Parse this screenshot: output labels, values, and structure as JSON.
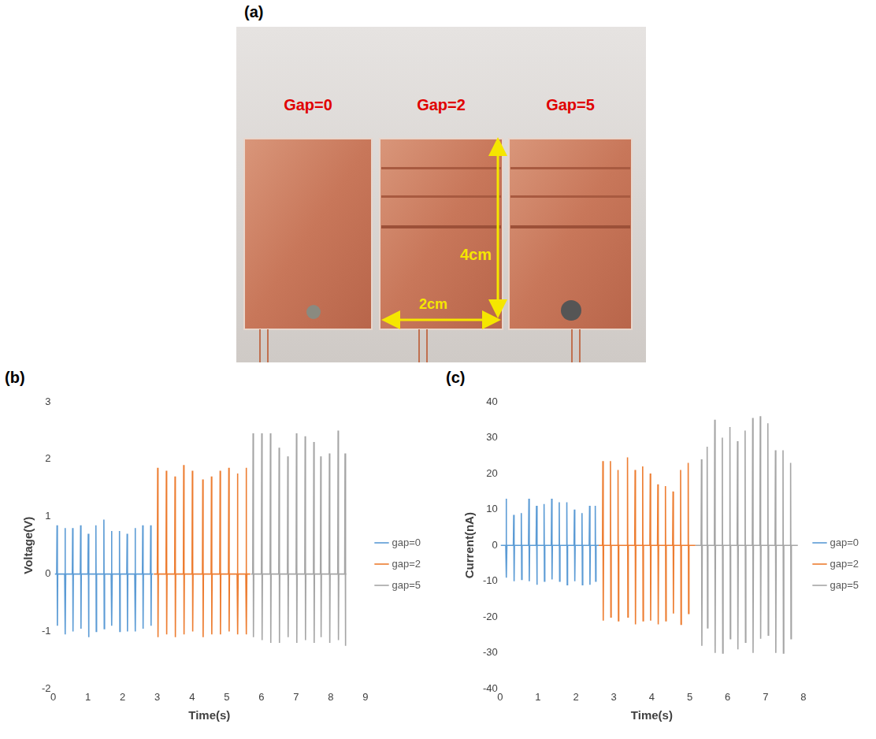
{
  "figure": {
    "panel_letters": [
      "(a)",
      "(b)",
      "(c)"
    ]
  },
  "photo": {
    "labels": [
      "Gap=0",
      "Gap=2",
      "Gap=5"
    ],
    "height_label": "4cm",
    "width_label": "2cm"
  },
  "chart_data": [
    {
      "type": "line",
      "x_label": "Time(s)",
      "y_label": "Voltage(V)",
      "xlim": [
        0,
        9
      ],
      "xticks": [
        0,
        1,
        2,
        3,
        4,
        5,
        6,
        7,
        8,
        9
      ],
      "ylim": [
        -2,
        3
      ],
      "yticks": [
        -2,
        -1,
        0,
        1,
        2,
        3
      ],
      "grid": false,
      "legend": "right",
      "series": [
        {
          "name": "gap=0",
          "color": "#5b9bd5",
          "x": [
            0.05,
            0.1,
            0.11,
            0.12,
            0.13,
            0.33,
            0.34,
            0.35,
            0.36,
            0.55,
            0.56,
            0.57,
            0.58,
            0.78,
            0.79,
            0.8,
            0.81,
            1.0,
            1.01,
            1.02,
            1.03,
            1.22,
            1.23,
            1.24,
            1.25,
            1.45,
            1.46,
            1.47,
            1.48,
            1.67,
            1.68,
            1.69,
            1.7,
            1.9,
            1.91,
            1.92,
            1.93,
            2.12,
            2.13,
            2.14,
            2.15,
            2.35,
            2.36,
            2.37,
            2.38,
            2.57,
            2.58,
            2.59,
            2.6,
            2.8,
            2.81,
            2.82,
            2.83,
            2.88
          ],
          "values": [
            0,
            0,
            0.85,
            -0.9,
            0,
            0,
            0.8,
            -1.05,
            0,
            0,
            0.8,
            -1.0,
            0,
            0,
            0.85,
            -0.95,
            0,
            0,
            0.7,
            -1.1,
            0,
            0,
            0.85,
            -1.0,
            0,
            0,
            0.95,
            -0.95,
            0,
            0,
            0.75,
            -0.9,
            0,
            0,
            0.75,
            -1.0,
            0,
            0,
            0.7,
            -1.0,
            0,
            0,
            0.8,
            -1.0,
            0,
            0,
            0.85,
            -0.95,
            0,
            0,
            0.85,
            -0.9,
            0,
            0
          ]
        },
        {
          "name": "gap=2",
          "color": "#ed7d31",
          "x": [
            2.9,
            3.0,
            3.01,
            3.02,
            3.03,
            3.25,
            3.26,
            3.27,
            3.28,
            3.5,
            3.51,
            3.52,
            3.53,
            3.75,
            3.76,
            3.77,
            3.78,
            4.0,
            4.01,
            4.02,
            4.03,
            4.3,
            4.31,
            4.32,
            4.33,
            4.55,
            4.56,
            4.57,
            4.58,
            4.8,
            4.81,
            4.82,
            4.83,
            5.05,
            5.06,
            5.07,
            5.08,
            5.3,
            5.31,
            5.32,
            5.33,
            5.55,
            5.56,
            5.57,
            5.58,
            5.68
          ],
          "values": [
            0,
            0,
            1.85,
            -1.1,
            0,
            0,
            1.8,
            -1.05,
            0,
            0,
            1.7,
            -1.1,
            0,
            0,
            1.9,
            -1.05,
            0,
            0,
            1.8,
            -1.0,
            0,
            0,
            1.65,
            -1.1,
            0,
            0,
            1.7,
            -1.05,
            0,
            0,
            1.8,
            -1.05,
            0,
            0,
            1.85,
            -1.0,
            0,
            0,
            1.75,
            -1.05,
            0,
            0,
            1.85,
            -1.05,
            0,
            0
          ]
        },
        {
          "name": "gap=5",
          "color": "#a5a5a5",
          "x": [
            5.7,
            5.75,
            5.76,
            5.77,
            5.78,
            6.0,
            6.01,
            6.02,
            6.03,
            6.25,
            6.26,
            6.27,
            6.28,
            6.5,
            6.51,
            6.52,
            6.53,
            6.75,
            6.76,
            6.77,
            6.78,
            7.0,
            7.01,
            7.02,
            7.03,
            7.25,
            7.26,
            7.27,
            7.28,
            7.5,
            7.51,
            7.52,
            7.53,
            7.7,
            7.71,
            7.72,
            7.73,
            7.95,
            7.96,
            7.97,
            7.98,
            8.2,
            8.21,
            8.22,
            8.23,
            8.4,
            8.41,
            8.42,
            8.43,
            8.45
          ],
          "values": [
            0,
            0,
            2.45,
            -1.1,
            0,
            0,
            2.45,
            -1.15,
            0,
            0,
            2.45,
            -1.2,
            0,
            0,
            2.2,
            -1.2,
            0,
            0,
            2.05,
            -1.1,
            0,
            0,
            2.45,
            -1.2,
            0,
            0,
            2.4,
            -1.15,
            0,
            0,
            2.3,
            -1.2,
            0,
            0,
            2.05,
            -1.1,
            0,
            0,
            2.1,
            -1.2,
            0,
            0,
            2.5,
            -1.15,
            0,
            0,
            2.1,
            -1.25,
            0,
            0
          ]
        }
      ]
    },
    {
      "type": "line",
      "x_label": "Time(s)",
      "y_label": "Current(nA)",
      "xlim": [
        0,
        8
      ],
      "xticks": [
        0,
        1,
        2,
        3,
        4,
        5,
        6,
        7,
        8
      ],
      "ylim": [
        -40,
        40
      ],
      "yticks": [
        -40,
        -30,
        -20,
        -10,
        0,
        10,
        20,
        30,
        40
      ],
      "grid": false,
      "legend": "right",
      "series": [
        {
          "name": "gap=0",
          "color": "#5b9bd5",
          "x": [
            0.02,
            0.15,
            0.16,
            0.17,
            0.18,
            0.35,
            0.36,
            0.37,
            0.38,
            0.55,
            0.56,
            0.57,
            0.58,
            0.75,
            0.76,
            0.77,
            0.78,
            0.95,
            0.96,
            0.97,
            0.98,
            1.15,
            1.16,
            1.17,
            1.18,
            1.35,
            1.36,
            1.37,
            1.38,
            1.55,
            1.56,
            1.57,
            1.58,
            1.75,
            1.76,
            1.77,
            1.78,
            1.95,
            1.96,
            1.97,
            1.98,
            2.15,
            2.16,
            2.17,
            2.18,
            2.35,
            2.36,
            2.37,
            2.38,
            2.5,
            2.51,
            2.52,
            2.53,
            2.6
          ],
          "values": [
            0,
            0,
            13,
            -9,
            0,
            0,
            8.5,
            -10,
            0,
            0,
            9,
            -9.5,
            0,
            0,
            13,
            -10,
            0,
            0,
            11,
            -11,
            0,
            0,
            11.5,
            -10,
            0,
            0,
            13,
            -9.5,
            0,
            0,
            12,
            -10,
            0,
            0,
            12,
            -11,
            0,
            0,
            10,
            -10,
            0,
            0,
            9,
            -11,
            0,
            0,
            11,
            -11,
            0,
            0,
            11,
            -10,
            0,
            0
          ]
        },
        {
          "name": "gap=2",
          "color": "#ed7d31",
          "x": [
            2.6,
            2.7,
            2.71,
            2.72,
            2.73,
            2.9,
            2.91,
            2.92,
            2.93,
            3.1,
            3.11,
            3.12,
            3.13,
            3.35,
            3.36,
            3.37,
            3.38,
            3.55,
            3.56,
            3.57,
            3.58,
            3.75,
            3.76,
            3.77,
            3.78,
            3.95,
            3.96,
            3.97,
            3.98,
            4.15,
            4.16,
            4.17,
            4.18,
            4.35,
            4.36,
            4.37,
            4.38,
            4.55,
            4.56,
            4.57,
            4.58,
            4.75,
            4.76,
            4.77,
            4.78,
            4.95,
            4.96,
            4.97,
            4.98,
            5.15
          ],
          "values": [
            0,
            0,
            23.5,
            -21,
            0,
            0,
            23.5,
            -20,
            0,
            0,
            21,
            -21,
            0,
            0,
            24.5,
            -20,
            0,
            0,
            21,
            -22,
            0,
            0,
            22,
            -21,
            0,
            0,
            20,
            -21,
            0,
            0,
            17,
            -22,
            0,
            0,
            16.5,
            -21,
            0,
            0,
            15,
            -19,
            0,
            0,
            21,
            -22,
            0,
            0,
            23,
            -19,
            0,
            0
          ]
        },
        {
          "name": "gap=5",
          "color": "#a5a5a5",
          "x": [
            5.15,
            5.3,
            5.31,
            5.32,
            5.33,
            5.45,
            5.46,
            5.47,
            5.48,
            5.65,
            5.66,
            5.67,
            5.68,
            5.85,
            5.86,
            5.87,
            5.88,
            6.05,
            6.06,
            6.07,
            6.08,
            6.25,
            6.26,
            6.27,
            6.28,
            6.45,
            6.46,
            6.47,
            6.48,
            6.65,
            6.66,
            6.67,
            6.68,
            6.85,
            6.86,
            6.87,
            6.88,
            7.05,
            7.06,
            7.07,
            7.08,
            7.25,
            7.26,
            7.27,
            7.28,
            7.45,
            7.46,
            7.47,
            7.48,
            7.65,
            7.66,
            7.67,
            7.68,
            7.85
          ],
          "values": [
            0,
            0,
            24,
            -28,
            0,
            0,
            27.5,
            -23,
            0,
            0,
            35,
            -30,
            0,
            0,
            30,
            -30,
            0,
            0,
            33,
            -26,
            0,
            0,
            29,
            -29,
            0,
            0,
            32,
            -27,
            0,
            0,
            35.5,
            -30,
            0,
            0,
            36,
            -26,
            0,
            0,
            34,
            -25,
            0,
            0,
            26.5,
            -30,
            0,
            0,
            26.5,
            -30,
            0,
            0,
            23,
            -26,
            0,
            0
          ]
        }
      ]
    }
  ]
}
